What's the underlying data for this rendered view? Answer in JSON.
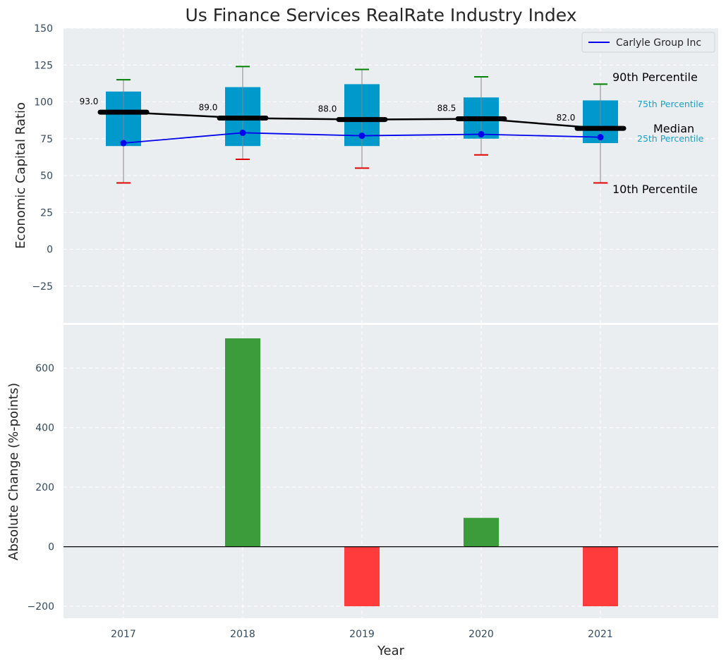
{
  "chart_data": [
    {
      "type": "box",
      "title": "Us Finance Services RealRate Industry Index",
      "ylabel": "Economic Capital Ratio",
      "ylim": [
        -50,
        150
      ],
      "yticks": [
        -25,
        0,
        25,
        50,
        75,
        100,
        125,
        150
      ],
      "ytick_labels": [
        "−25",
        "0",
        "25",
        "50",
        "75",
        "100",
        "125",
        "150"
      ],
      "categories": [
        "2017",
        "2018",
        "2019",
        "2020",
        "2021"
      ],
      "percentiles": {
        "p10": [
          45,
          61,
          55,
          64,
          45
        ],
        "p25": [
          70,
          70,
          70,
          75,
          72
        ],
        "median": [
          93.0,
          89.0,
          88.0,
          88.5,
          82.0
        ],
        "p75": [
          107,
          110,
          112,
          103,
          101
        ],
        "p90": [
          115,
          124,
          122,
          117,
          112
        ]
      },
      "median_labels": [
        "93.0",
        "89.0",
        "88.0",
        "88.5",
        "82.0"
      ],
      "series": [
        {
          "name": "Carlyle Group Inc",
          "values": [
            72,
            79,
            77,
            78,
            76
          ],
          "color": "#0000ee"
        }
      ],
      "annotations": {
        "p90": "90th Percentile",
        "p75": "75th Percentile",
        "median": "Median",
        "p25": "25th Percentile",
        "p10": "10th Percentile"
      },
      "legend_placement": "top-right",
      "grid": true,
      "colors": {
        "box": "#0099cc",
        "median": "#000000",
        "p90_cap": "#008000",
        "p10_cap": "#e00000",
        "whisker": "#888888",
        "background": "#eaeef0"
      }
    },
    {
      "type": "bar",
      "xlabel": "Year",
      "ylabel": "Absolute Change (%-points)",
      "ylim": [
        -240,
        745
      ],
      "yticks": [
        -200,
        0,
        200,
        400,
        600
      ],
      "ytick_labels": [
        "−200",
        "0",
        "200",
        "400",
        "600"
      ],
      "categories": [
        "2017",
        "2018",
        "2019",
        "2020",
        "2021"
      ],
      "values": [
        0,
        700,
        -200,
        97,
        -200
      ],
      "grid": true,
      "colors": {
        "positive": "#3c9c3c",
        "negative": "#ff3b3b",
        "zero_line": "#000000"
      }
    }
  ]
}
